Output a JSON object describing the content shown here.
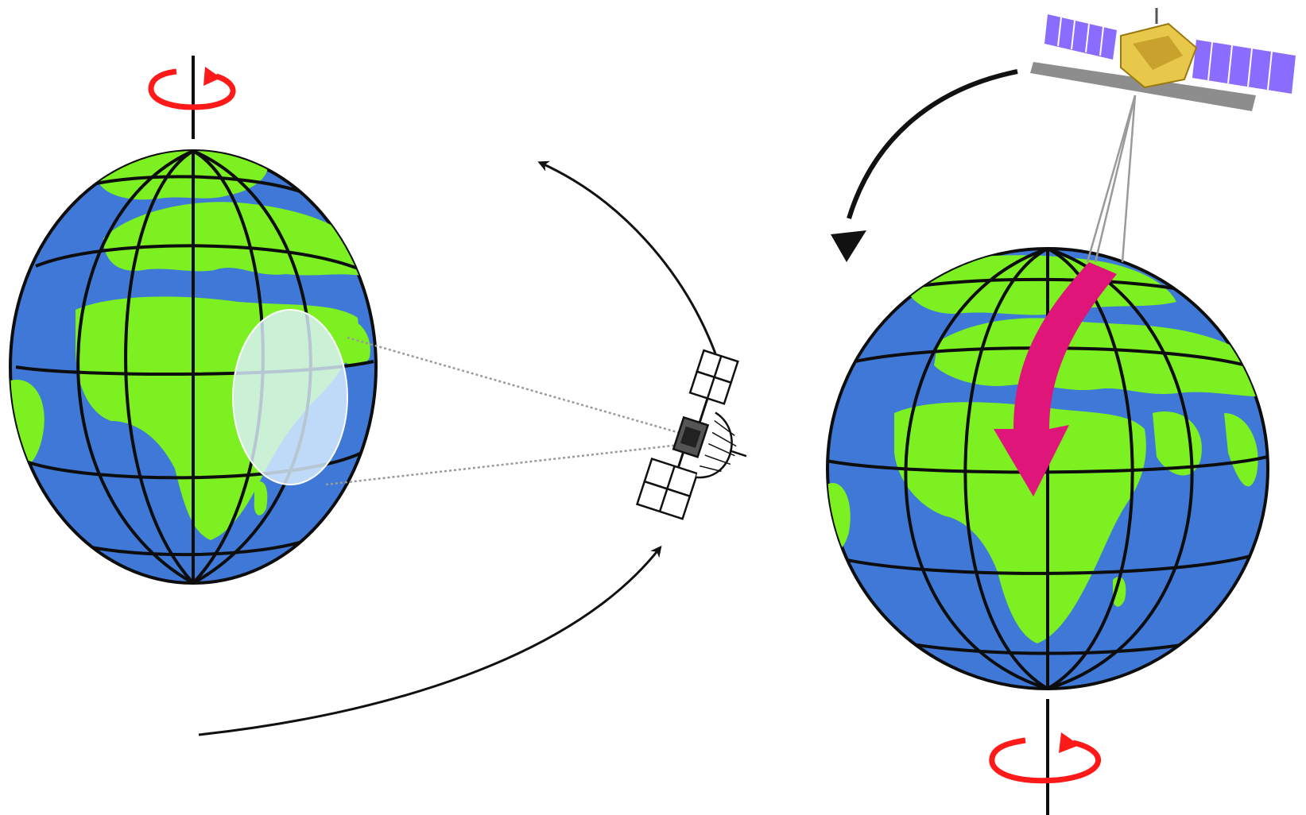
{
  "diagram": {
    "left_view": {
      "globe": "earth-globe",
      "rotation_icon": "rotation-arrow-icon",
      "satellite": "geostationary-satellite",
      "coverage": "coverage-footprint",
      "orbit_arrows": 2
    },
    "right_view": {
      "globe": "earth-globe",
      "rotation_icon": "rotation-arrow-icon",
      "satellite": "polar-orbit-satellite",
      "orbit_arrows": 1,
      "ground_track_arrow": "ground-track-arrow"
    },
    "colors": {
      "ocean": "#3f78d6",
      "land": "#7cf020",
      "grid": "#0d0d0d",
      "rotation": "#ff1a1a",
      "ground_track": "#e0157a",
      "solar_panel": "#8a6cff",
      "coverage": "#dcefff",
      "orbit_arrow": "#111111"
    }
  }
}
